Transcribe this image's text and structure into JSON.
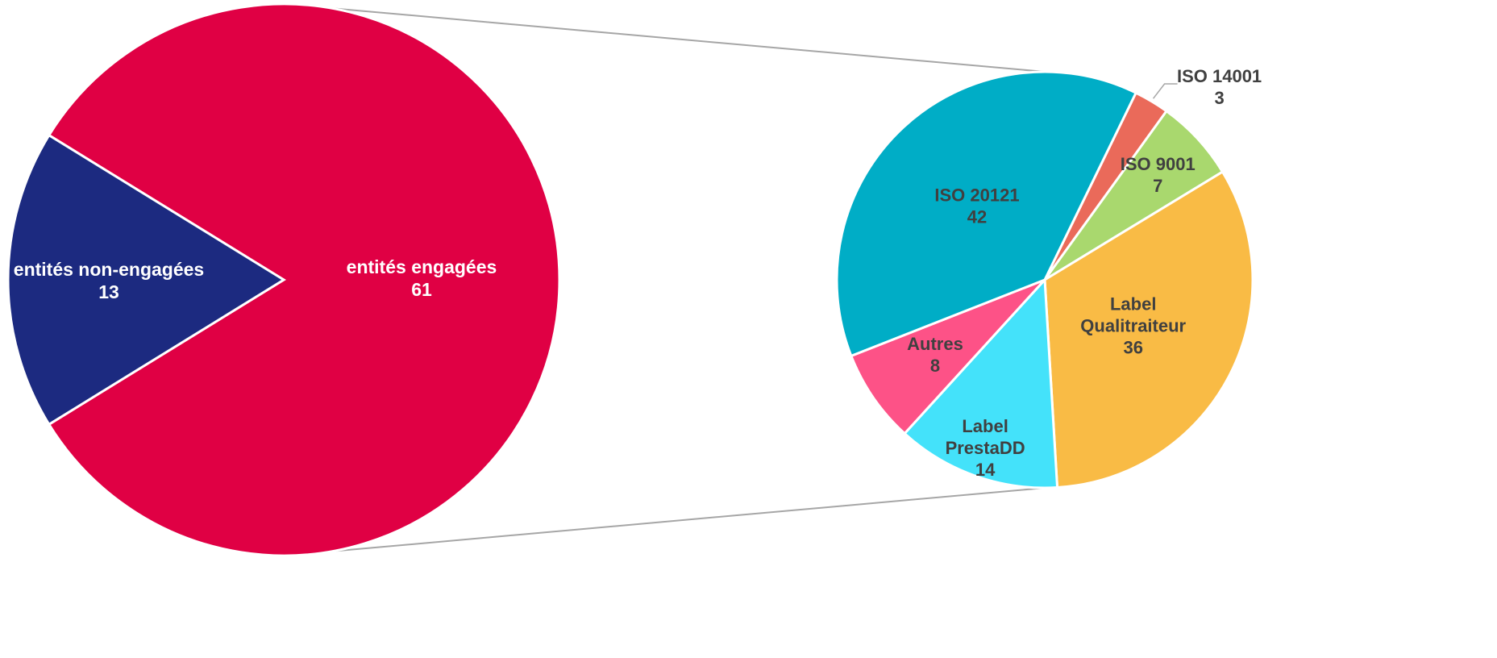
{
  "chart_data": [
    {
      "type": "pie",
      "role": "primary",
      "slices": [
        {
          "label": "entités engagées",
          "value": 61,
          "color": "#e00044"
        },
        {
          "label": "entités non-engagées",
          "value": 13,
          "color": "#1c2a80"
        }
      ]
    },
    {
      "type": "pie",
      "role": "breakdown of entités engagées",
      "slices": [
        {
          "label": [
            "ISO 14001"
          ],
          "value": 3,
          "color": "#ea6a5a"
        },
        {
          "label": [
            "ISO 9001"
          ],
          "value": 7,
          "color": "#a9d86e"
        },
        {
          "label": [
            "Label",
            "Qualitraiteur"
          ],
          "value": 36,
          "color": "#f9bb45"
        },
        {
          "label": [
            "Label",
            "PrestaDD"
          ],
          "value": 14,
          "color": "#44e2fa"
        },
        {
          "label": [
            "Autres"
          ],
          "value": 8,
          "color": "#fd5287"
        },
        {
          "label": [
            "ISO 20121"
          ],
          "value": 42,
          "color": "#00adc6"
        }
      ]
    }
  ]
}
